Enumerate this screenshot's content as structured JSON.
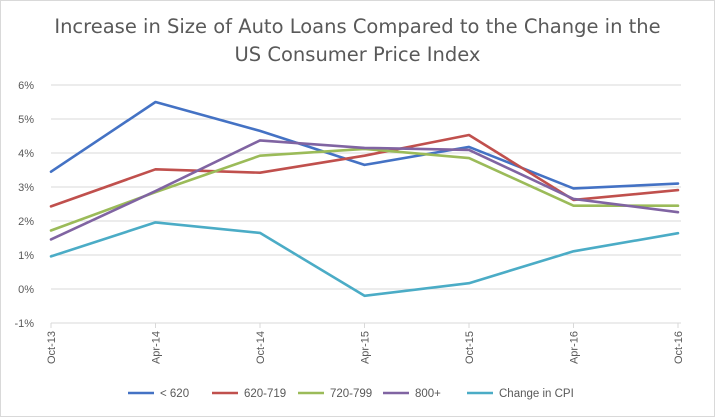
{
  "chart_data": {
    "type": "line",
    "title": "Increase in Size of Auto Loans Compared to the Change in the US Consumer Price Index",
    "title_lines": [
      "Increase in Size of Auto Loans Compared to the Change in the",
      "US Consumer Price Index"
    ],
    "xlabel": "",
    "ylabel": "",
    "x": [
      "Oct-13",
      "Apr-14",
      "Oct-14",
      "Apr-15",
      "Oct-15",
      "Apr-16",
      "Oct-16"
    ],
    "ylim": [
      -0.01,
      0.06
    ],
    "ytick_values": [
      -0.01,
      0,
      0.01,
      0.02,
      0.03,
      0.04,
      0.05,
      0.06
    ],
    "ytick_labels": [
      "-1%",
      "0%",
      "1%",
      "2%",
      "3%",
      "4%",
      "5%",
      "6%"
    ],
    "grid": "horizontal",
    "legend_position": "bottom",
    "series": [
      {
        "name": "< 620",
        "color": "#4472c4",
        "values": [
          0.0345,
          0.055,
          0.0465,
          0.0365,
          0.0418,
          0.0296,
          0.031
        ]
      },
      {
        "name": "620-719",
        "color": "#c0504d",
        "values": [
          0.0243,
          0.0352,
          0.0342,
          0.0392,
          0.0453,
          0.0262,
          0.0291
        ]
      },
      {
        "name": "720-799",
        "color": "#9bbb59",
        "values": [
          0.0172,
          0.0285,
          0.0392,
          0.0412,
          0.0385,
          0.0245,
          0.0245
        ]
      },
      {
        "name": "800+",
        "color": "#8064a2",
        "values": [
          0.0146,
          0.0288,
          0.0437,
          0.0415,
          0.0409,
          0.0265,
          0.0226
        ]
      },
      {
        "name": "Change in CPI",
        "color": "#4bacc6",
        "values": [
          0.0096,
          0.0196,
          0.0165,
          -0.002,
          0.0017,
          0.0111,
          0.0164
        ]
      }
    ]
  }
}
